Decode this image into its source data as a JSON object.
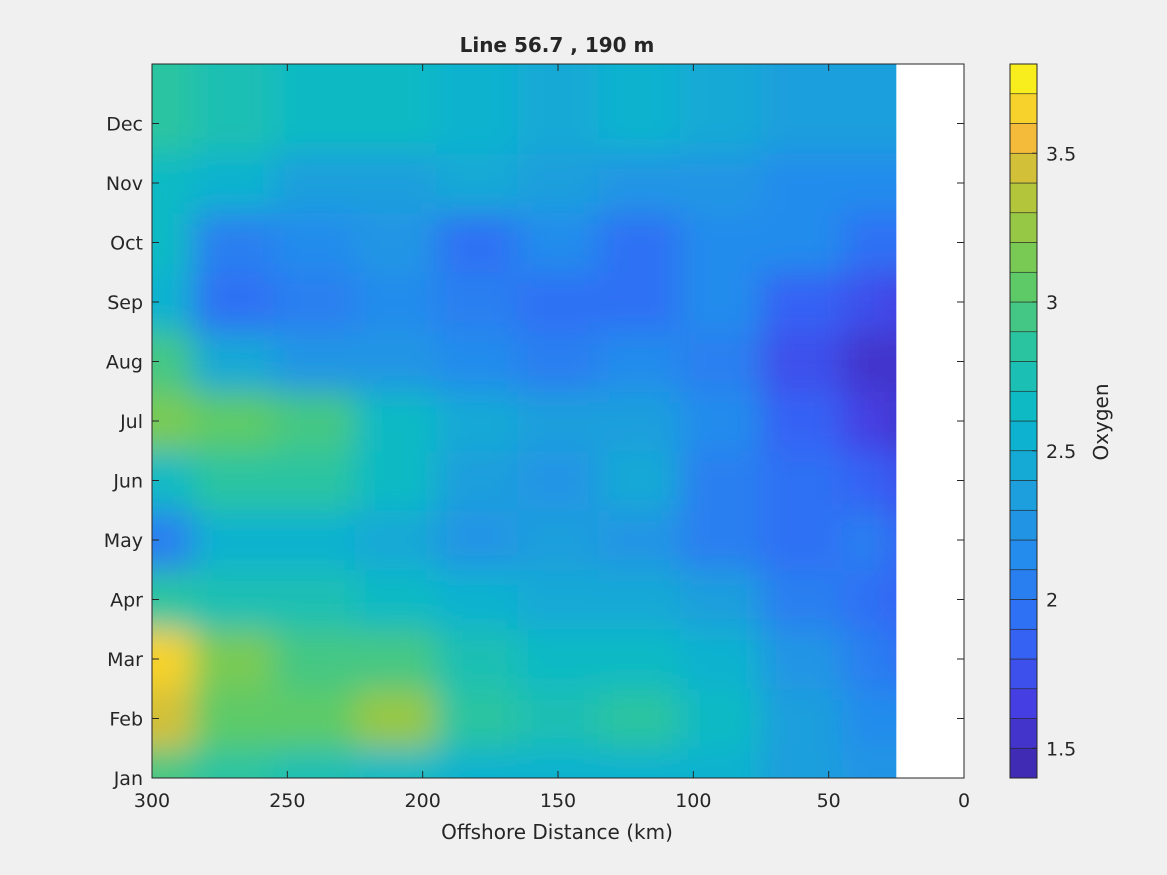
{
  "chart_data": {
    "type": "heatmap",
    "title": "Line 56.7 , 190 m",
    "xlabel": "Offshore Distance (km)",
    "ylabel": "",
    "xlim": [
      300,
      0
    ],
    "x_direction": "reversed",
    "x_ticks": [
      300,
      250,
      200,
      150,
      100,
      50,
      0
    ],
    "y_categories": [
      "Jan",
      "Feb",
      "Mar",
      "Apr",
      "May",
      "Jun",
      "Jul",
      "Aug",
      "Sep",
      "Oct",
      "Nov",
      "Dec"
    ],
    "data_x_extent": [
      300,
      25
    ],
    "colorbar": {
      "label": "Oxygen",
      "range": [
        1.4,
        3.8
      ],
      "ticks": [
        1.5,
        2,
        2.5,
        3,
        3.5
      ],
      "levels": 24,
      "colormap": "parula"
    },
    "z_approx": {
      "x": [
        300,
        270,
        240,
        210,
        180,
        150,
        120,
        90,
        60,
        30,
        25
      ],
      "rows": [
        {
          "month": "Jan",
          "values": [
            2.9,
            2.8,
            2.7,
            2.6,
            2.55,
            2.5,
            2.55,
            2.5,
            2.3,
            2.2,
            2.2
          ]
        },
        {
          "month": "Feb",
          "values": [
            3.4,
            3.0,
            3.0,
            3.2,
            2.8,
            2.7,
            2.8,
            2.6,
            2.3,
            2.1,
            2.1
          ]
        },
        {
          "month": "Mar",
          "values": [
            3.6,
            3.1,
            2.9,
            2.9,
            2.7,
            2.6,
            2.6,
            2.5,
            2.2,
            2.0,
            1.9
          ]
        },
        {
          "month": "Apr",
          "values": [
            2.8,
            2.7,
            2.7,
            2.6,
            2.5,
            2.4,
            2.4,
            2.3,
            2.0,
            1.9,
            1.8
          ]
        },
        {
          "month": "May",
          "values": [
            2.0,
            2.5,
            2.5,
            2.4,
            2.2,
            2.3,
            2.2,
            2.0,
            1.9,
            2.0,
            1.8
          ]
        },
        {
          "month": "Jun",
          "values": [
            2.6,
            2.8,
            2.8,
            2.6,
            2.3,
            2.2,
            2.4,
            2.0,
            1.9,
            1.8,
            1.7
          ]
        },
        {
          "month": "Jul",
          "values": [
            3.1,
            3.0,
            2.9,
            2.6,
            2.4,
            2.3,
            2.3,
            2.1,
            1.8,
            1.6,
            1.5
          ]
        },
        {
          "month": "Aug",
          "values": [
            2.9,
            2.4,
            2.2,
            2.2,
            2.1,
            2.0,
            2.1,
            2.0,
            1.7,
            1.5,
            1.5
          ]
        },
        {
          "month": "Sep",
          "values": [
            2.5,
            1.9,
            2.0,
            2.1,
            2.0,
            1.9,
            1.9,
            2.1,
            1.8,
            1.7,
            1.6
          ]
        },
        {
          "month": "Oct",
          "values": [
            2.6,
            2.0,
            2.1,
            2.2,
            1.9,
            2.1,
            1.9,
            2.1,
            2.1,
            1.9,
            1.9
          ]
        },
        {
          "month": "Nov",
          "values": [
            2.6,
            2.5,
            2.3,
            2.3,
            2.4,
            2.3,
            2.2,
            2.2,
            2.1,
            2.1,
            2.1
          ]
        },
        {
          "month": "Dec",
          "values": [
            2.8,
            2.7,
            2.6,
            2.6,
            2.5,
            2.4,
            2.5,
            2.4,
            2.3,
            2.3,
            2.3
          ]
        }
      ]
    }
  }
}
